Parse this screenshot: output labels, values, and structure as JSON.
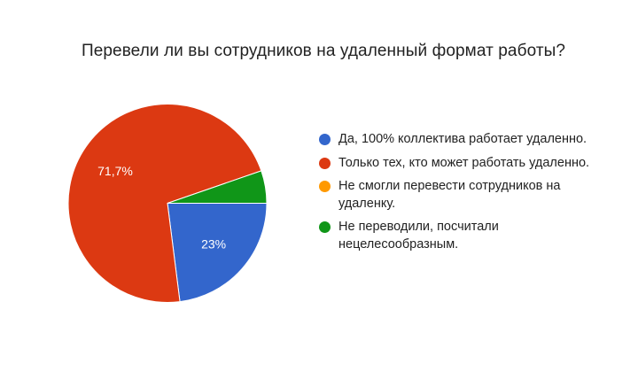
{
  "chart_data": {
    "type": "pie",
    "title": "Перевели ли вы сотрудников на удаленный формат работы?",
    "slices": [
      {
        "label": "Да, 100% коллектива работает удаленно.",
        "value": 23,
        "value_label": "23%",
        "color": "#3366cc"
      },
      {
        "label": "Только тех, кто может работать удаленно.",
        "value": 71.7,
        "value_label": "71,7%",
        "color": "#dc3912"
      },
      {
        "label": "Не смогли перевести сотрудников на удаленку.",
        "value": 0,
        "value_label": "",
        "color": "#ff9900"
      },
      {
        "label": "Не переводили, посчитали нецелесообразным.",
        "value": 5.3,
        "value_label": "",
        "color": "#109618"
      }
    ],
    "legend_position": "right"
  }
}
